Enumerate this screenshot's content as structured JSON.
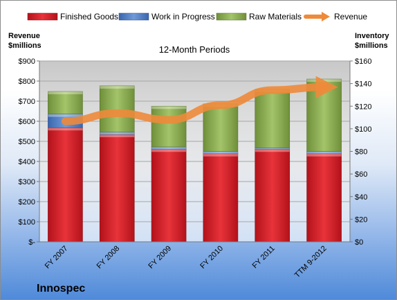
{
  "chart_data": {
    "type": "bar",
    "title": "12-Month Periods",
    "company": "Innospec",
    "categories": [
      "FY 2007",
      "FY 2008",
      "FY 2009",
      "FY 2010",
      "FY 2011",
      "TTM 9-2012"
    ],
    "series": [
      {
        "name": "Finished Goods",
        "axis": "right",
        "stack": true,
        "color": "#e0262e",
        "values": [
          101,
          95,
          82,
          78,
          82,
          78
        ]
      },
      {
        "name": "Work in Progress",
        "axis": "right",
        "stack": true,
        "color": "#4f7fc7",
        "values": [
          12,
          2,
          2,
          2,
          1,
          2
        ]
      },
      {
        "name": "Raw Materials",
        "axis": "right",
        "stack": true,
        "color": "#94b65a",
        "values": [
          20,
          41,
          36,
          42,
          52,
          64
        ]
      },
      {
        "name": "Revenue",
        "axis": "left",
        "type": "line",
        "color": "#ee8a3a",
        "values": [
          600,
          640,
          607,
          680,
          755,
          770
        ]
      }
    ],
    "left_axis": {
      "label_line1": "Revenue",
      "label_line2": "$millions",
      "ylim": [
        0,
        900
      ],
      "ticks": [
        "$-",
        "$100",
        "$200",
        "$300",
        "$400",
        "$500",
        "$600",
        "$700",
        "$800",
        "$900"
      ]
    },
    "right_axis": {
      "label_line1": "Inventory",
      "label_line2": "$millions",
      "ylim": [
        0,
        160
      ],
      "ticks": [
        "$0",
        "$20",
        "$40",
        "$60",
        "$80",
        "$100",
        "$120",
        "$140",
        "$160"
      ]
    },
    "legend_position": "top"
  }
}
